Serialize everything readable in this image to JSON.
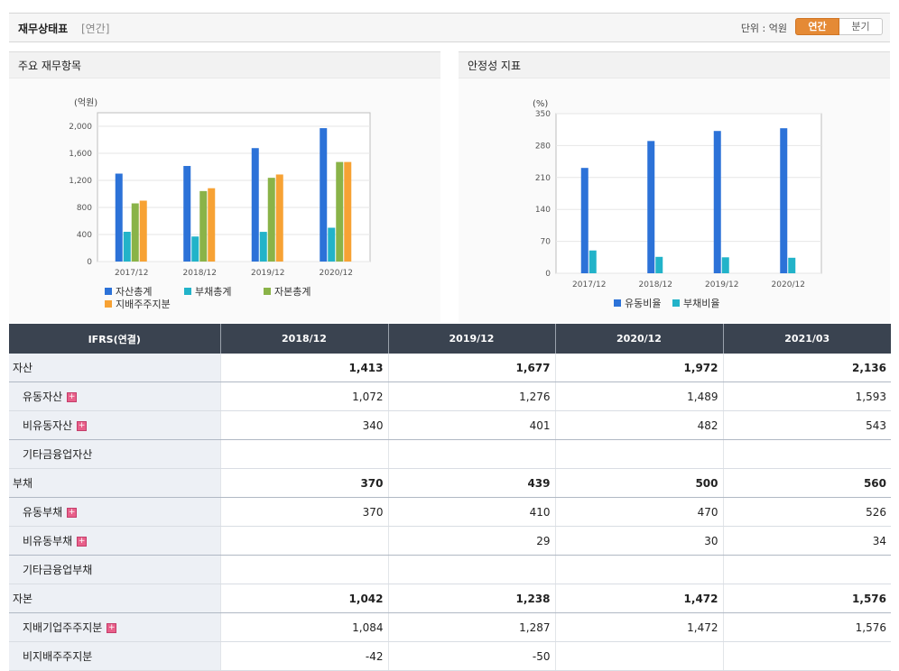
{
  "header": {
    "title": "재무상태표",
    "subtitle": "[연간]",
    "unit": "단위 : 억원",
    "toggle": [
      "연간",
      "분기"
    ]
  },
  "colors": {
    "asset": "#2c72d8",
    "liab": "#22b3c9",
    "equity": "#8ab348",
    "parent": "#f7a234",
    "current_ratio": "#2c72d8",
    "debt_ratio": "#22b3c9",
    "accent": "#e58a35",
    "negative": "#e0201e"
  },
  "chart_data": [
    {
      "type": "bar",
      "title": "주요 재무항목",
      "ylabel": "(억원)",
      "categories": [
        "2017/12",
        "2018/12",
        "2019/12",
        "2020/12"
      ],
      "ylim": [
        0,
        2200
      ],
      "yticks": [
        0,
        400,
        800,
        1200,
        1600,
        2000
      ],
      "ytick_labels": [
        "0",
        "400",
        "800",
        "1,200",
        "1,600",
        "2,000"
      ],
      "grid": true,
      "legend": "bottom",
      "series": [
        {
          "name": "자산총계",
          "values": [
            1300,
            1413,
            1677,
            1972
          ]
        },
        {
          "name": "부채총계",
          "values": [
            440,
            370,
            439,
            500
          ]
        },
        {
          "name": "자본총계",
          "values": [
            860,
            1042,
            1238,
            1472
          ]
        },
        {
          "name": "지배주주지분",
          "values": [
            900,
            1084,
            1287,
            1472
          ]
        }
      ]
    },
    {
      "type": "bar",
      "title": "안정성 지표",
      "ylabel": "(%)",
      "categories": [
        "2017/12",
        "2018/12",
        "2019/12",
        "2020/12"
      ],
      "ylim": [
        0,
        350
      ],
      "yticks": [
        0,
        70,
        140,
        210,
        280,
        350
      ],
      "ytick_labels": [
        "0",
        "70",
        "140",
        "210",
        "280",
        "350"
      ],
      "grid": true,
      "legend": "bottom",
      "series": [
        {
          "name": "유동비율",
          "values": [
            231,
            290,
            312,
            318
          ]
        },
        {
          "name": "부채비율",
          "values": [
            50,
            36,
            35,
            34
          ]
        }
      ]
    }
  ],
  "table": {
    "header": [
      "IFRS(연결)",
      "2018/12",
      "2019/12",
      "2020/12",
      "2021/03"
    ],
    "rows": [
      {
        "label": "자산",
        "values": [
          "1,413",
          "1,677",
          "1,972",
          "2,136"
        ],
        "major": true
      },
      {
        "label": "유동자산",
        "values": [
          "1,072",
          "1,276",
          "1,489",
          "1,593"
        ],
        "plus": true
      },
      {
        "label": "비유동자산",
        "values": [
          "340",
          "401",
          "482",
          "543"
        ],
        "plus": true
      },
      {
        "label": "기타금융업자산",
        "values": [
          "",
          "",
          "",
          ""
        ]
      },
      {
        "label": "부채",
        "values": [
          "370",
          "439",
          "500",
          "560"
        ],
        "major": true
      },
      {
        "label": "유동부채",
        "values": [
          "370",
          "410",
          "470",
          "526"
        ],
        "plus": true
      },
      {
        "label": "비유동부채",
        "values": [
          "",
          "29",
          "30",
          "34"
        ],
        "plus": true
      },
      {
        "label": "기타금융업부채",
        "values": [
          "",
          "",
          "",
          ""
        ]
      },
      {
        "label": "자본",
        "values": [
          "1,042",
          "1,238",
          "1,472",
          "1,576"
        ],
        "major": true
      },
      {
        "label": "지배기업주주지분",
        "values": [
          "1,084",
          "1,287",
          "1,472",
          "1,576"
        ],
        "plus": true
      },
      {
        "label": "비지배주주지분",
        "values": [
          "-42",
          "-50",
          "",
          ""
        ]
      }
    ]
  }
}
